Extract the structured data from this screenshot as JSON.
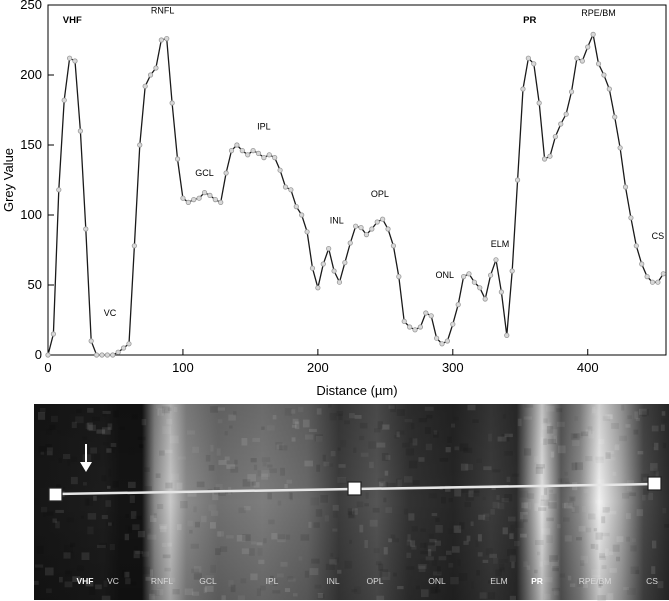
{
  "chart_data": [
    {
      "type": "line",
      "title": "",
      "xlabel": "Distance (µm)",
      "ylabel": "Grey Value",
      "xlim": [
        0,
        458
      ],
      "ylim": [
        0,
        250
      ],
      "xticks": [
        0,
        100,
        200,
        300,
        400
      ],
      "yticks": [
        0,
        50,
        100,
        150,
        200,
        250
      ],
      "grid": false,
      "legend": "none",
      "line_color": "#1a1a1a",
      "marker_color": "#9a9a9a",
      "series": [
        {
          "x": [
            0,
            4,
            8,
            12,
            16,
            20,
            24,
            28,
            32,
            36,
            40,
            44,
            48,
            52,
            56,
            60,
            64,
            68,
            72,
            76,
            80,
            84,
            88,
            92,
            96,
            100,
            104,
            108,
            112,
            116,
            120,
            124,
            128,
            132,
            136,
            140,
            144,
            148,
            152,
            156,
            160,
            164,
            168,
            172,
            176,
            180,
            184,
            188,
            192,
            196,
            200,
            204,
            208,
            212,
            216,
            220,
            224,
            228,
            232,
            236,
            240,
            244,
            248,
            252,
            256,
            260,
            264,
            268,
            272,
            276,
            280,
            284,
            288,
            292,
            296,
            300,
            304,
            308,
            312,
            316,
            320,
            324,
            328,
            332,
            336,
            340,
            344,
            348,
            352,
            356,
            360,
            364,
            368,
            372,
            376,
            380,
            384,
            388,
            392,
            396,
            400,
            404,
            408,
            412,
            416,
            420,
            424,
            428,
            432,
            436,
            440,
            444,
            448,
            452,
            456
          ],
          "y": [
            0,
            15,
            118,
            182,
            212,
            210,
            160,
            90,
            10,
            0,
            0,
            0,
            0,
            2,
            5,
            8,
            78,
            150,
            192,
            200,
            205,
            225,
            226,
            180,
            140,
            112,
            109,
            111,
            112,
            116,
            114,
            111,
            109,
            130,
            146,
            150,
            146,
            143,
            146,
            144,
            141,
            143,
            141,
            132,
            120,
            118,
            106,
            100,
            88,
            62,
            48,
            65,
            76,
            60,
            52,
            66,
            80,
            92,
            91,
            86,
            90,
            95,
            97,
            90,
            78,
            56,
            24,
            20,
            18,
            20,
            30,
            28,
            12,
            8,
            10,
            22,
            36,
            56,
            58,
            52,
            48,
            40,
            57,
            68,
            45,
            14,
            60,
            125,
            190,
            212,
            208,
            180,
            140,
            142,
            156,
            165,
            172,
            188,
            212,
            210,
            220,
            229,
            208,
            200,
            190,
            170,
            148,
            120,
            98,
            78,
            65,
            56,
            52,
            52,
            58
          ]
        }
      ],
      "annotations": [
        {
          "text": "VHF",
          "x": 18,
          "y": 237,
          "bold": true
        },
        {
          "text": "VC",
          "x": 46,
          "y": 28,
          "bold": false
        },
        {
          "text": "RNFL",
          "x": 85,
          "y": 244,
          "bold": false
        },
        {
          "text": "GCL",
          "x": 116,
          "y": 128,
          "bold": false
        },
        {
          "text": "IPL",
          "x": 160,
          "y": 161,
          "bold": false
        },
        {
          "text": "INL",
          "x": 214,
          "y": 94,
          "bold": false
        },
        {
          "text": "OPL",
          "x": 246,
          "y": 113,
          "bold": false
        },
        {
          "text": "ONL",
          "x": 294,
          "y": 55,
          "bold": false
        },
        {
          "text": "ELM",
          "x": 335,
          "y": 77,
          "bold": false
        },
        {
          "text": "PR",
          "x": 357,
          "y": 237,
          "bold": true
        },
        {
          "text": "RPE/BM",
          "x": 408,
          "y": 242,
          "bold": false
        },
        {
          "text": "CS",
          "x": 452,
          "y": 83,
          "bold": false
        }
      ]
    },
    {
      "type": "heatmap",
      "title": "",
      "layer_labels": [
        {
          "text": "VHF",
          "bold": true
        },
        {
          "text": "VC",
          "bold": false
        },
        {
          "text": "RNFL",
          "bold": false
        },
        {
          "text": "GCL",
          "bold": false
        },
        {
          "text": "IPL",
          "bold": false
        },
        {
          "text": "INL",
          "bold": false
        },
        {
          "text": "OPL",
          "bold": false
        },
        {
          "text": "ONL",
          "bold": false
        },
        {
          "text": "ELM",
          "bold": false
        },
        {
          "text": "PR",
          "bold": true
        },
        {
          "text": "RPE/BM",
          "bold": false
        },
        {
          "text": "CS",
          "bold": false
        }
      ],
      "profile_line": "white line with three square handles",
      "arrow": "white downward arrow above VHF"
    }
  ]
}
